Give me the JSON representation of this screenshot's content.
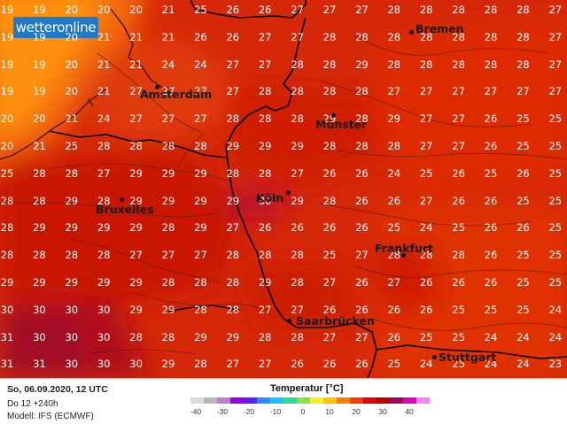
{
  "logo": {
    "text": "wetteronline"
  },
  "legend": {
    "title": "Temperatur [°C]",
    "ticks": [
      "-40",
      "-30",
      "-20",
      "-10",
      "0",
      "10",
      "20",
      "30",
      "40"
    ],
    "colors": [
      "#dcdcdc",
      "#b8b8b8",
      "#c080d0",
      "#9a00d8",
      "#5a20ff",
      "#2a8cff",
      "#10c8ff",
      "#30d890",
      "#8ee040",
      "#f4f020",
      "#ffc000",
      "#ff8000",
      "#ff3a00",
      "#e00000",
      "#b80000",
      "#a00060",
      "#e000c0",
      "#ff80ff"
    ]
  },
  "footer": {
    "date": "So, 06.09.2020, 12 UTC",
    "run": "Do 12 +240h",
    "model": "Modell: IFS (ECMWF)"
  },
  "cities": [
    {
      "name": "Bremen"
    },
    {
      "name": "Amsterdam"
    },
    {
      "name": "Münster"
    },
    {
      "name": "Köln"
    },
    {
      "name": "Bruxelles"
    },
    {
      "name": "Frankfurt"
    },
    {
      "name": "Saarbrücken"
    },
    {
      "name": "Stuttgart"
    }
  ],
  "temperature_grid": [
    [
      "19",
      "19",
      "20",
      "20",
      "20",
      "21",
      "25",
      "26",
      "26",
      "27",
      "27",
      "27",
      "28",
      "28",
      "28",
      "28",
      "28",
      "27"
    ],
    [
      "19",
      "19",
      "20",
      "21",
      "21",
      "21",
      "26",
      "26",
      "27",
      "27",
      "28",
      "28",
      "28",
      "28",
      "28",
      "28",
      "28",
      "27"
    ],
    [
      "19",
      "19",
      "20",
      "21",
      "21",
      "24",
      "24",
      "27",
      "27",
      "28",
      "28",
      "29",
      "28",
      "28",
      "28",
      "28",
      "28",
      "27"
    ],
    [
      "19",
      "19",
      "20",
      "21",
      "27",
      "27",
      "27",
      "27",
      "28",
      "28",
      "28",
      "28",
      "27",
      "27",
      "27",
      "27",
      "27",
      "27"
    ],
    [
      "20",
      "20",
      "21",
      "24",
      "27",
      "27",
      "27",
      "28",
      "28",
      "28",
      "29",
      "28",
      "29",
      "27",
      "27",
      "26",
      "25",
      "25"
    ],
    [
      "20",
      "21",
      "25",
      "28",
      "28",
      "28",
      "28",
      "29",
      "29",
      "29",
      "28",
      "28",
      "28",
      "27",
      "27",
      "26",
      "25",
      "25"
    ],
    [
      "25",
      "28",
      "28",
      "27",
      "29",
      "29",
      "29",
      "28",
      "28",
      "27",
      "26",
      "26",
      "24",
      "25",
      "26",
      "25",
      "26",
      "25"
    ],
    [
      "28",
      "28",
      "29",
      "28",
      "29",
      "29",
      "29",
      "29",
      "30",
      "29",
      "28",
      "26",
      "26",
      "27",
      "26",
      "26",
      "25",
      "25"
    ],
    [
      "28",
      "29",
      "29",
      "29",
      "29",
      "28",
      "29",
      "27",
      "26",
      "26",
      "26",
      "26",
      "25",
      "24",
      "25",
      "26",
      "26",
      "25"
    ],
    [
      "28",
      "28",
      "28",
      "28",
      "27",
      "27",
      "27",
      "28",
      "28",
      "28",
      "25",
      "27",
      "28",
      "28",
      "28",
      "26",
      "25",
      "25"
    ],
    [
      "29",
      "29",
      "29",
      "29",
      "29",
      "28",
      "28",
      "28",
      "29",
      "28",
      "27",
      "26",
      "27",
      "26",
      "26",
      "26",
      "25",
      "25"
    ],
    [
      "30",
      "30",
      "30",
      "30",
      "29",
      "29",
      "28",
      "28",
      "27",
      "27",
      "26",
      "26",
      "26",
      "26",
      "25",
      "25",
      "25",
      "24"
    ],
    [
      "31",
      "30",
      "30",
      "30",
      "28",
      "28",
      "29",
      "29",
      "28",
      "28",
      "27",
      "27",
      "26",
      "25",
      "25",
      "24",
      "24",
      "24"
    ],
    [
      "31",
      "31",
      "30",
      "30",
      "30",
      "29",
      "28",
      "27",
      "27",
      "26",
      "26",
      "26",
      "25",
      "24",
      "25",
      "24",
      "24",
      "23"
    ]
  ]
}
